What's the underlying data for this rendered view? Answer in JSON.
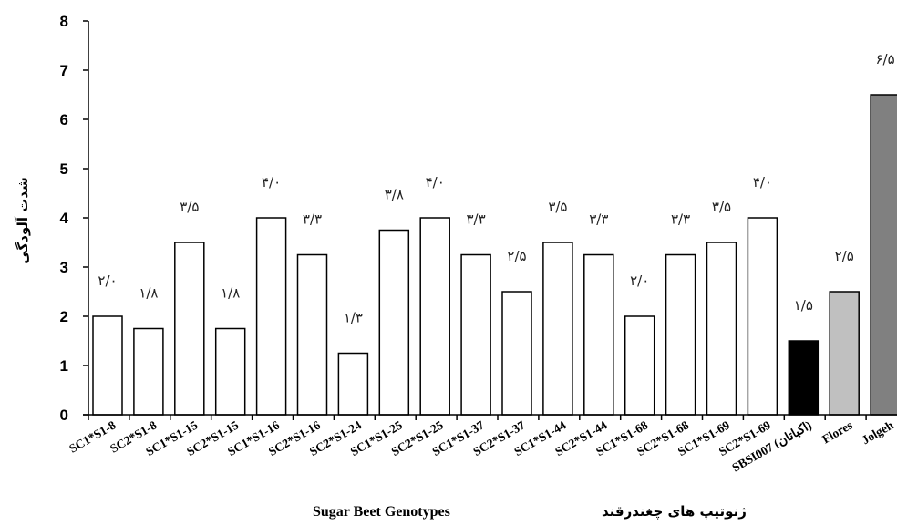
{
  "chart_data": {
    "type": "bar",
    "ylabel": "شدت آلودگی",
    "xlabel_fa": "ژنوتیپ های چغندرقند",
    "xlabel_en": "Sugar Beet Genotypes",
    "ylim": [
      0,
      8
    ],
    "yticks": [
      "0",
      "1",
      "2",
      "3",
      "4",
      "5",
      "6",
      "7",
      "8"
    ],
    "grid": false,
    "categories": [
      "SC1*S1-8",
      "SC2*S1-8",
      "SC1*S1-15",
      "SC2*S1-15",
      "SC1*S1-16",
      "SC2*S1-16",
      "SC2*S1-24",
      "SC1*S1-25",
      "SC2*S1-25",
      "SC1*S1-37",
      "SC2*S1-37",
      "SC1*S1-44",
      "SC2*S1-44",
      "SC1*S1-68",
      "SC2*S1-68",
      "SC1*S1-69",
      "SC2*S1-69",
      "SBSI007 (اکباتان)",
      "Flores",
      "Jolgeh"
    ],
    "values": [
      2.0,
      1.75,
      3.5,
      1.75,
      4.0,
      3.25,
      1.25,
      3.75,
      4.0,
      3.25,
      2.5,
      3.5,
      3.25,
      2.0,
      3.25,
      3.5,
      4.0,
      1.5,
      2.5,
      6.5
    ],
    "data_labels": [
      "۲/۰",
      "۱/۸",
      "۳/۵",
      "۱/۸",
      "۴/۰",
      "۳/۳",
      "۱/۳",
      "۳/۸",
      "۴/۰",
      "۳/۳",
      "۲/۵",
      "۳/۵",
      "۳/۳",
      "۲/۰",
      "۳/۳",
      "۳/۵",
      "۴/۰",
      "۱/۵",
      "۲/۵",
      "۶/۵"
    ],
    "bar_colors": [
      "#ffffff",
      "#ffffff",
      "#ffffff",
      "#ffffff",
      "#ffffff",
      "#ffffff",
      "#ffffff",
      "#ffffff",
      "#ffffff",
      "#ffffff",
      "#ffffff",
      "#ffffff",
      "#ffffff",
      "#ffffff",
      "#ffffff",
      "#ffffff",
      "#ffffff",
      "#000000",
      "#c0c0c0",
      "#808080"
    ],
    "bar_edge_color": "#000000"
  }
}
